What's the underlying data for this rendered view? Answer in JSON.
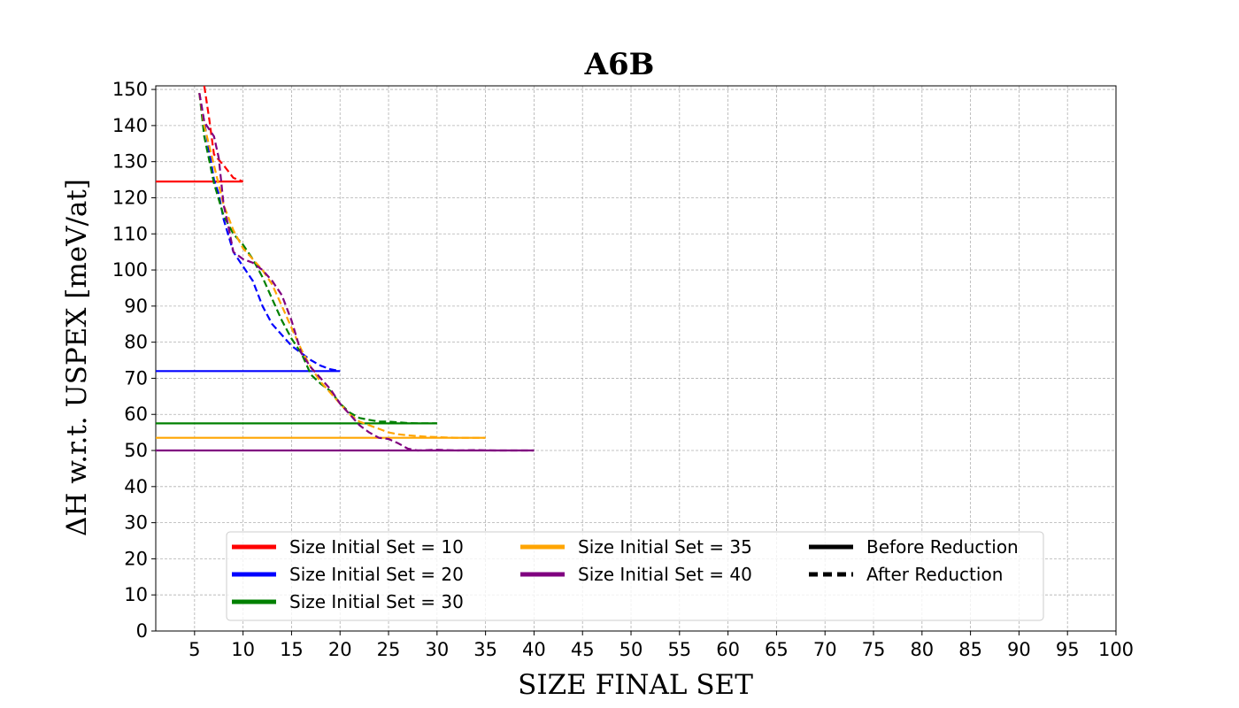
{
  "chart_data": {
    "type": "line",
    "title": "A6B",
    "xlabel": "SIZE FINAL SET",
    "ylabel": "ΔH w.r.t. USPEX [meV/at]",
    "xlim": [
      1,
      100
    ],
    "ylim": [
      0,
      151
    ],
    "xticks": [
      5,
      10,
      15,
      20,
      25,
      30,
      35,
      40,
      45,
      50,
      55,
      60,
      65,
      70,
      75,
      80,
      85,
      90,
      95,
      100
    ],
    "yticks": [
      0,
      10,
      20,
      30,
      40,
      50,
      60,
      70,
      80,
      90,
      100,
      110,
      120,
      130,
      140,
      150
    ],
    "grid": true,
    "legend_position": "lower-center",
    "series": [
      {
        "name": "Size Initial Set = 10",
        "color": "#ff0000",
        "before_reduction": {
          "x": [
            1,
            10
          ],
          "y": [
            124.5,
            124.5
          ]
        },
        "after_reduction": {
          "x": [
            6,
            6.5,
            7,
            8,
            9,
            10
          ],
          "y": [
            151,
            142,
            132,
            129,
            125.5,
            124.5
          ]
        }
      },
      {
        "name": "Size Initial Set = 20",
        "color": "#0000ff",
        "before_reduction": {
          "x": [
            1,
            20
          ],
          "y": [
            72,
            72
          ]
        },
        "after_reduction": {
          "x": [
            5.5,
            6,
            6.5,
            7,
            7.5,
            8,
            9,
            10,
            11,
            12,
            13,
            14,
            15,
            16,
            17,
            18,
            19,
            20
          ],
          "y": [
            149,
            141,
            133,
            125,
            121,
            114,
            105,
            101,
            97,
            90,
            85,
            82,
            79,
            77,
            75,
            73.5,
            72.5,
            72
          ]
        }
      },
      {
        "name": "Size Initial Set = 30",
        "color": "#008000",
        "before_reduction": {
          "x": [
            1,
            30
          ],
          "y": [
            57.5,
            57.5
          ]
        },
        "after_reduction": {
          "x": [
            5.5,
            6,
            7,
            8,
            9,
            10,
            11,
            12,
            13,
            14,
            15,
            16,
            17,
            18,
            19,
            20,
            21,
            22,
            23,
            24,
            25,
            26,
            27,
            28,
            29,
            30
          ],
          "y": [
            149,
            137,
            124,
            115,
            110,
            107,
            103,
            98,
            92,
            86,
            81,
            77,
            71,
            68.5,
            66.5,
            63,
            60.5,
            59,
            58.5,
            58,
            58,
            57.8,
            57.6,
            57.5,
            57.5,
            57.5
          ]
        }
      },
      {
        "name": "Size Initial Set = 35",
        "color": "#ffa500",
        "before_reduction": {
          "x": [
            1,
            35
          ],
          "y": [
            53.5,
            53.5
          ]
        },
        "after_reduction": {
          "x": [
            5.5,
            6,
            7,
            8,
            9,
            10,
            11,
            12,
            13,
            14,
            15,
            16,
            17,
            18,
            19,
            20,
            21,
            22,
            23,
            24,
            25,
            26,
            27,
            28,
            29,
            30,
            31,
            32,
            33,
            34,
            35
          ],
          "y": [
            149,
            140,
            129,
            118,
            111,
            106,
            103,
            100,
            96,
            90,
            84,
            78,
            73,
            69,
            66,
            63,
            60,
            58,
            57,
            56,
            55,
            54.5,
            54.2,
            54,
            53.8,
            53.7,
            53.6,
            53.5,
            53.5,
            53.5,
            53.5
          ]
        }
      },
      {
        "name": "Size Initial Set = 40",
        "color": "#800080",
        "before_reduction": {
          "x": [
            1,
            40
          ],
          "y": [
            50,
            50
          ]
        },
        "after_reduction": {
          "x": [
            5.5,
            6,
            7,
            7.5,
            8,
            8.5,
            9,
            10,
            11,
            12,
            13,
            14,
            15,
            16,
            17,
            18,
            19,
            20,
            21,
            22,
            23,
            24,
            25,
            26,
            27,
            28,
            30,
            32,
            34,
            36,
            38,
            40
          ],
          "y": [
            149,
            141,
            137,
            131,
            118,
            112,
            105,
            103,
            102,
            100,
            97,
            93,
            86,
            77,
            73,
            70,
            67,
            63,
            60,
            57,
            55,
            53.5,
            53.2,
            52,
            50.5,
            50,
            50.2,
            50,
            50.1,
            50,
            50,
            50
          ]
        }
      }
    ],
    "legend": {
      "series_labels": [
        "Size Initial Set = 10",
        "Size Initial Set = 20",
        "Size Initial Set = 30",
        "Size Initial Set = 35",
        "Size Initial Set = 40"
      ],
      "style_labels": {
        "solid": "Before Reduction",
        "dashed": "After Reduction"
      },
      "style_color": "#000000"
    }
  }
}
